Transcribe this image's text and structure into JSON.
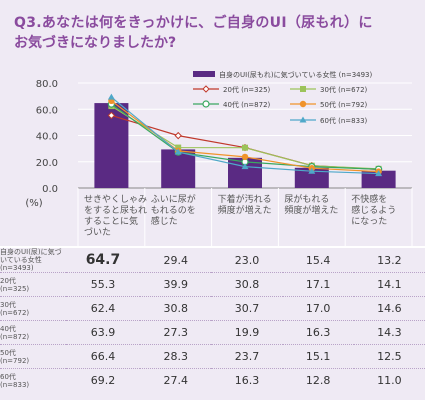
{
  "title": {
    "line1": "Q3.あなたは何をきっかけに、ご自身のUI（尿もれ）に",
    "line2": "お気づきになりましたか?"
  },
  "colors": {
    "bar": "#5a2a83",
    "n20": "#c0392b",
    "n30": "#9cc35a",
    "n40": "#3aa860",
    "n50": "#f0932b",
    "n60": "#4fa8c9",
    "title": "#8a4b9e"
  },
  "chart_data": {
    "type": "bar",
    "y_unit": "(%)",
    "ylim": [
      0,
      80
    ],
    "yticks": [
      "80.0",
      "60.0",
      "40.0",
      "20.0",
      "0.0"
    ],
    "categories": [
      [
        "せきやくしゃみ",
        "をすると尿もれ",
        "することに気",
        "づいた"
      ],
      [
        "ふいに尿が",
        "もれるのを",
        "感じた"
      ],
      [
        "下着が汚れる",
        "頻度が増えた"
      ],
      [
        "尿がもれる",
        "頻度が増えた"
      ],
      [
        "不快感を",
        "感じるよう",
        "になった"
      ]
    ],
    "series": [
      {
        "name": "自身のUI(尿もれ)に気づいている女性 (n=3493)",
        "type": "bar",
        "color_key": "bar",
        "values": [
          64.7,
          29.4,
          23.0,
          15.4,
          13.2
        ]
      },
      {
        "name": "20代 (n=325)",
        "type": "line",
        "marker": "diamond-open",
        "color_key": "n20",
        "values": [
          55.3,
          39.9,
          30.8,
          17.1,
          14.1
        ]
      },
      {
        "name": "30代 (n=672)",
        "type": "line",
        "marker": "square",
        "color_key": "n30",
        "values": [
          62.4,
          30.8,
          30.7,
          17.0,
          14.6
        ]
      },
      {
        "name": "40代 (n=872)",
        "type": "line",
        "marker": "circle-open",
        "color_key": "n40",
        "values": [
          63.9,
          27.3,
          19.9,
          16.3,
          14.3
        ]
      },
      {
        "name": "50代 (n=792)",
        "type": "line",
        "marker": "circle",
        "color_key": "n50",
        "values": [
          66.4,
          28.3,
          23.7,
          15.1,
          12.5
        ]
      },
      {
        "name": "60代 (n=833)",
        "type": "line",
        "marker": "triangle",
        "color_key": "n60",
        "values": [
          69.2,
          27.4,
          16.3,
          12.8,
          11.0
        ]
      }
    ]
  },
  "table": {
    "rows": [
      {
        "head": [
          "自身のUI(尿)に気づ",
          "いている女性"
        ],
        "n": "(n=3493)",
        "values": [
          "64.7",
          "29.4",
          "23.0",
          "15.4",
          "13.2"
        ]
      },
      {
        "head": [
          "20代"
        ],
        "n": "(n=325)",
        "values": [
          "55.3",
          "39.9",
          "30.8",
          "17.1",
          "14.1"
        ]
      },
      {
        "head": [
          "30代"
        ],
        "n": "(n=672)",
        "values": [
          "62.4",
          "30.8",
          "30.7",
          "17.0",
          "14.6"
        ]
      },
      {
        "head": [
          "40代"
        ],
        "n": "(n=872)",
        "values": [
          "63.9",
          "27.3",
          "19.9",
          "16.3",
          "14.3"
        ]
      },
      {
        "head": [
          "50代"
        ],
        "n": "(n=792)",
        "values": [
          "66.4",
          "28.3",
          "23.7",
          "15.1",
          "12.5"
        ]
      },
      {
        "head": [
          "60代"
        ],
        "n": "(n=833)",
        "values": [
          "69.2",
          "27.4",
          "16.3",
          "12.8",
          "11.0"
        ]
      }
    ]
  }
}
